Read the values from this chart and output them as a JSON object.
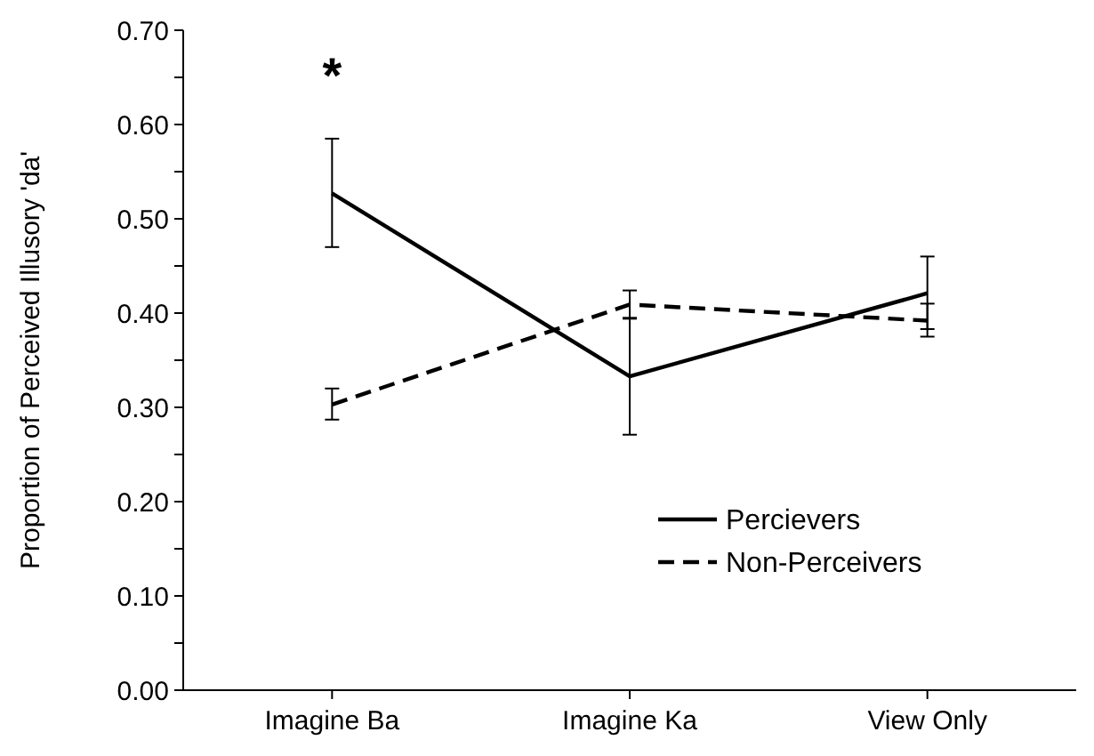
{
  "chart_data": {
    "type": "line",
    "ylabel": "Proportion of Perceived Illusory 'da'",
    "categories": [
      "Imagine Ba",
      "Imagine Ka",
      "View Only"
    ],
    "series": [
      {
        "name": "Percievers",
        "color": "#000000",
        "line_style": "solid",
        "values": [
          0.527,
          0.333,
          0.421
        ],
        "errors": [
          [
            0.47,
            0.585
          ],
          [
            0.271,
            0.395
          ],
          [
            0.383,
            0.46
          ]
        ]
      },
      {
        "name": "Non-Perceivers",
        "color": "#000000",
        "line_style": "dashed",
        "values": [
          0.303,
          0.409,
          0.392
        ],
        "errors": [
          [
            0.287,
            0.32
          ],
          [
            0.394,
            0.424
          ],
          [
            0.375,
            0.41
          ]
        ]
      }
    ],
    "ylim": [
      0,
      0.7
    ],
    "yticks": [
      {
        "value": 0,
        "label": "0.00"
      },
      {
        "value": 0.05,
        "label": null
      },
      {
        "value": 0.1,
        "label": "0.10"
      },
      {
        "value": 0.15,
        "label": null
      },
      {
        "value": 0.2,
        "label": "0.20"
      },
      {
        "value": 0.25,
        "label": null
      },
      {
        "value": 0.3,
        "label": "0.30"
      },
      {
        "value": 0.35,
        "label": null
      },
      {
        "value": 0.4,
        "label": "0.40"
      },
      {
        "value": 0.45,
        "label": null
      },
      {
        "value": 0.5,
        "label": "0.50"
      },
      {
        "value": 0.55,
        "label": null
      },
      {
        "value": 0.6,
        "label": "0.60"
      },
      {
        "value": 0.65,
        "label": null
      },
      {
        "value": 0.7,
        "label": "0.70"
      }
    ],
    "annotations": [
      "*"
    ],
    "legend": "bottom right",
    "grid": false,
    "marker": "none"
  }
}
